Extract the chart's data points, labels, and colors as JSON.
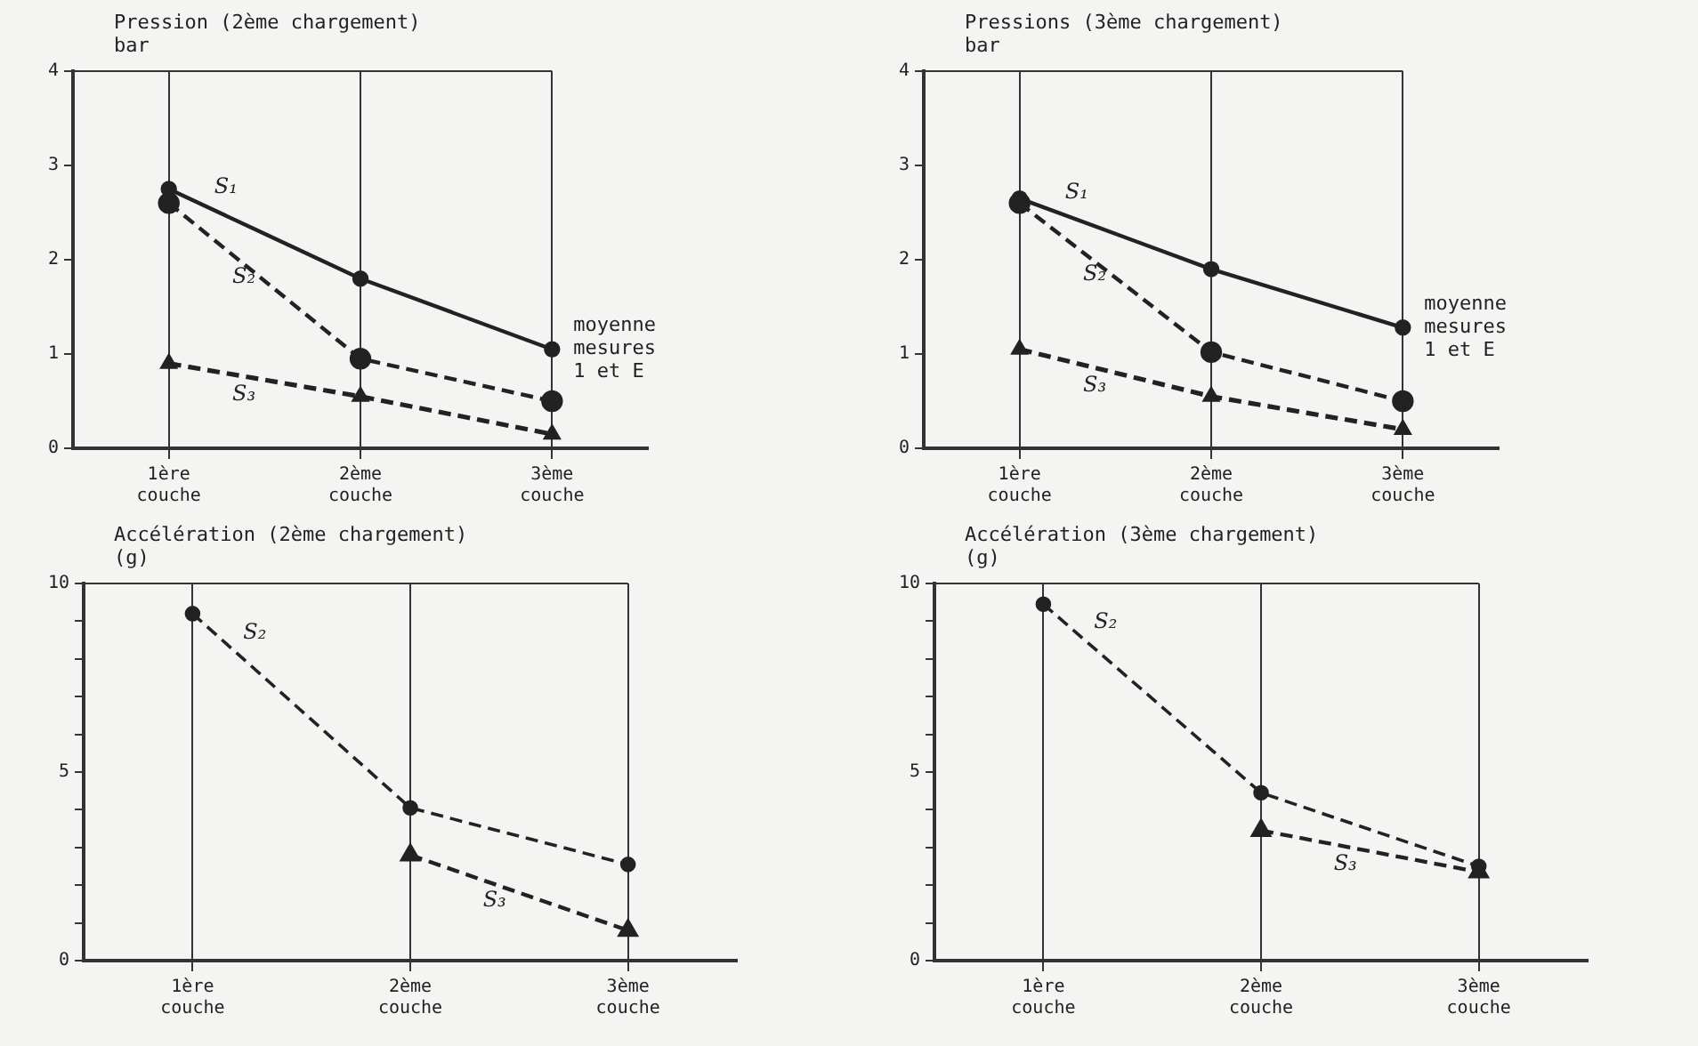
{
  "chart_data": [
    {
      "type": "line",
      "title": "Pression (2ème chargement)",
      "ylabel": "bar",
      "categories": [
        "1ère couche",
        "2ème couche",
        "3ème couche"
      ],
      "ylim": [
        0,
        4
      ],
      "yticks": [
        0,
        1,
        2,
        3,
        4
      ],
      "grid": "x",
      "legend": false,
      "annotations": [
        "moyenne mesures 1 et E"
      ],
      "series": [
        {
          "name": "S₁",
          "color": "#222222",
          "values": [
            2.75,
            1.8,
            1.05
          ],
          "marker": "circle",
          "line_style": "solid"
        },
        {
          "name": "S₂",
          "color": "#222222",
          "values": [
            2.6,
            0.95,
            0.5
          ],
          "marker": "circle",
          "line_style": "dashed"
        },
        {
          "name": "S₃",
          "color": "#222222",
          "values": [
            0.9,
            0.55,
            0.15
          ],
          "marker": "triangle",
          "line_style": "dashed"
        }
      ]
    },
    {
      "type": "line",
      "title": "Pressions (3ème chargement)",
      "ylabel": "bar",
      "categories": [
        "1ère couche",
        "2ème couche",
        "3ème couche"
      ],
      "ylim": [
        0,
        4
      ],
      "yticks": [
        0,
        1,
        2,
        3,
        4
      ],
      "grid": "x",
      "legend": false,
      "annotations": [
        "moyenne mesures 1 et E"
      ],
      "series": [
        {
          "name": "S₁",
          "color": "#222222",
          "values": [
            2.65,
            1.9,
            1.28
          ],
          "marker": "circle",
          "line_style": "solid"
        },
        {
          "name": "S₂",
          "color": "#222222",
          "values": [
            2.6,
            1.02,
            0.5
          ],
          "marker": "circle",
          "line_style": "dashed"
        },
        {
          "name": "S₃",
          "color": "#222222",
          "values": [
            1.05,
            0.55,
            0.2
          ],
          "marker": "triangle",
          "line_style": "dashed"
        }
      ]
    },
    {
      "type": "line",
      "title": "Accélération (2ème chargement)",
      "ylabel": "(g)",
      "categories": [
        "1ère couche",
        "2ème couche",
        "3ème couche"
      ],
      "ylim": [
        0,
        10
      ],
      "yticks": [
        0,
        {
          "value": 1,
          "label": null
        },
        {
          "value": 2,
          "label": null
        },
        {
          "value": 3,
          "label": null
        },
        {
          "value": 4,
          "label": null
        },
        5,
        {
          "value": 6,
          "label": null
        },
        {
          "value": 7,
          "label": null
        },
        {
          "value": 8,
          "label": null
        },
        {
          "value": 9,
          "label": null
        },
        10
      ],
      "grid": "x",
      "legend": false,
      "series": [
        {
          "name": "S₂",
          "color": "#222222",
          "values": [
            9.2,
            4.05,
            2.55
          ],
          "marker": "circle",
          "line_style": "dashed"
        },
        {
          "name": "S₃",
          "color": "#222222",
          "values": [
            null,
            2.8,
            0.8
          ],
          "marker": "triangle",
          "line_style": "dashed"
        }
      ]
    },
    {
      "type": "line",
      "title": "Accélération (3ème chargement)",
      "ylabel": "(g)",
      "categories": [
        "1ère couche",
        "2ème couche",
        "3ème couche"
      ],
      "ylim": [
        0,
        10
      ],
      "yticks": [
        0,
        {
          "value": 1,
          "label": null
        },
        {
          "value": 2,
          "label": null
        },
        {
          "value": 3,
          "label": null
        },
        {
          "value": 4,
          "label": null
        },
        5,
        {
          "value": 6,
          "label": null
        },
        {
          "value": 7,
          "label": null
        },
        {
          "value": 8,
          "label": null
        },
        {
          "value": 9,
          "label": null
        },
        10
      ],
      "grid": "x",
      "legend": false,
      "series": [
        {
          "name": "S₂",
          "color": "#222222",
          "values": [
            9.45,
            4.45,
            2.5
          ],
          "marker": "circle",
          "line_style": "dashed"
        },
        {
          "name": "S₃",
          "color": "#222222",
          "values": [
            null,
            3.45,
            2.35
          ],
          "marker": "triangle",
          "line_style": "dashed"
        }
      ]
    }
  ]
}
